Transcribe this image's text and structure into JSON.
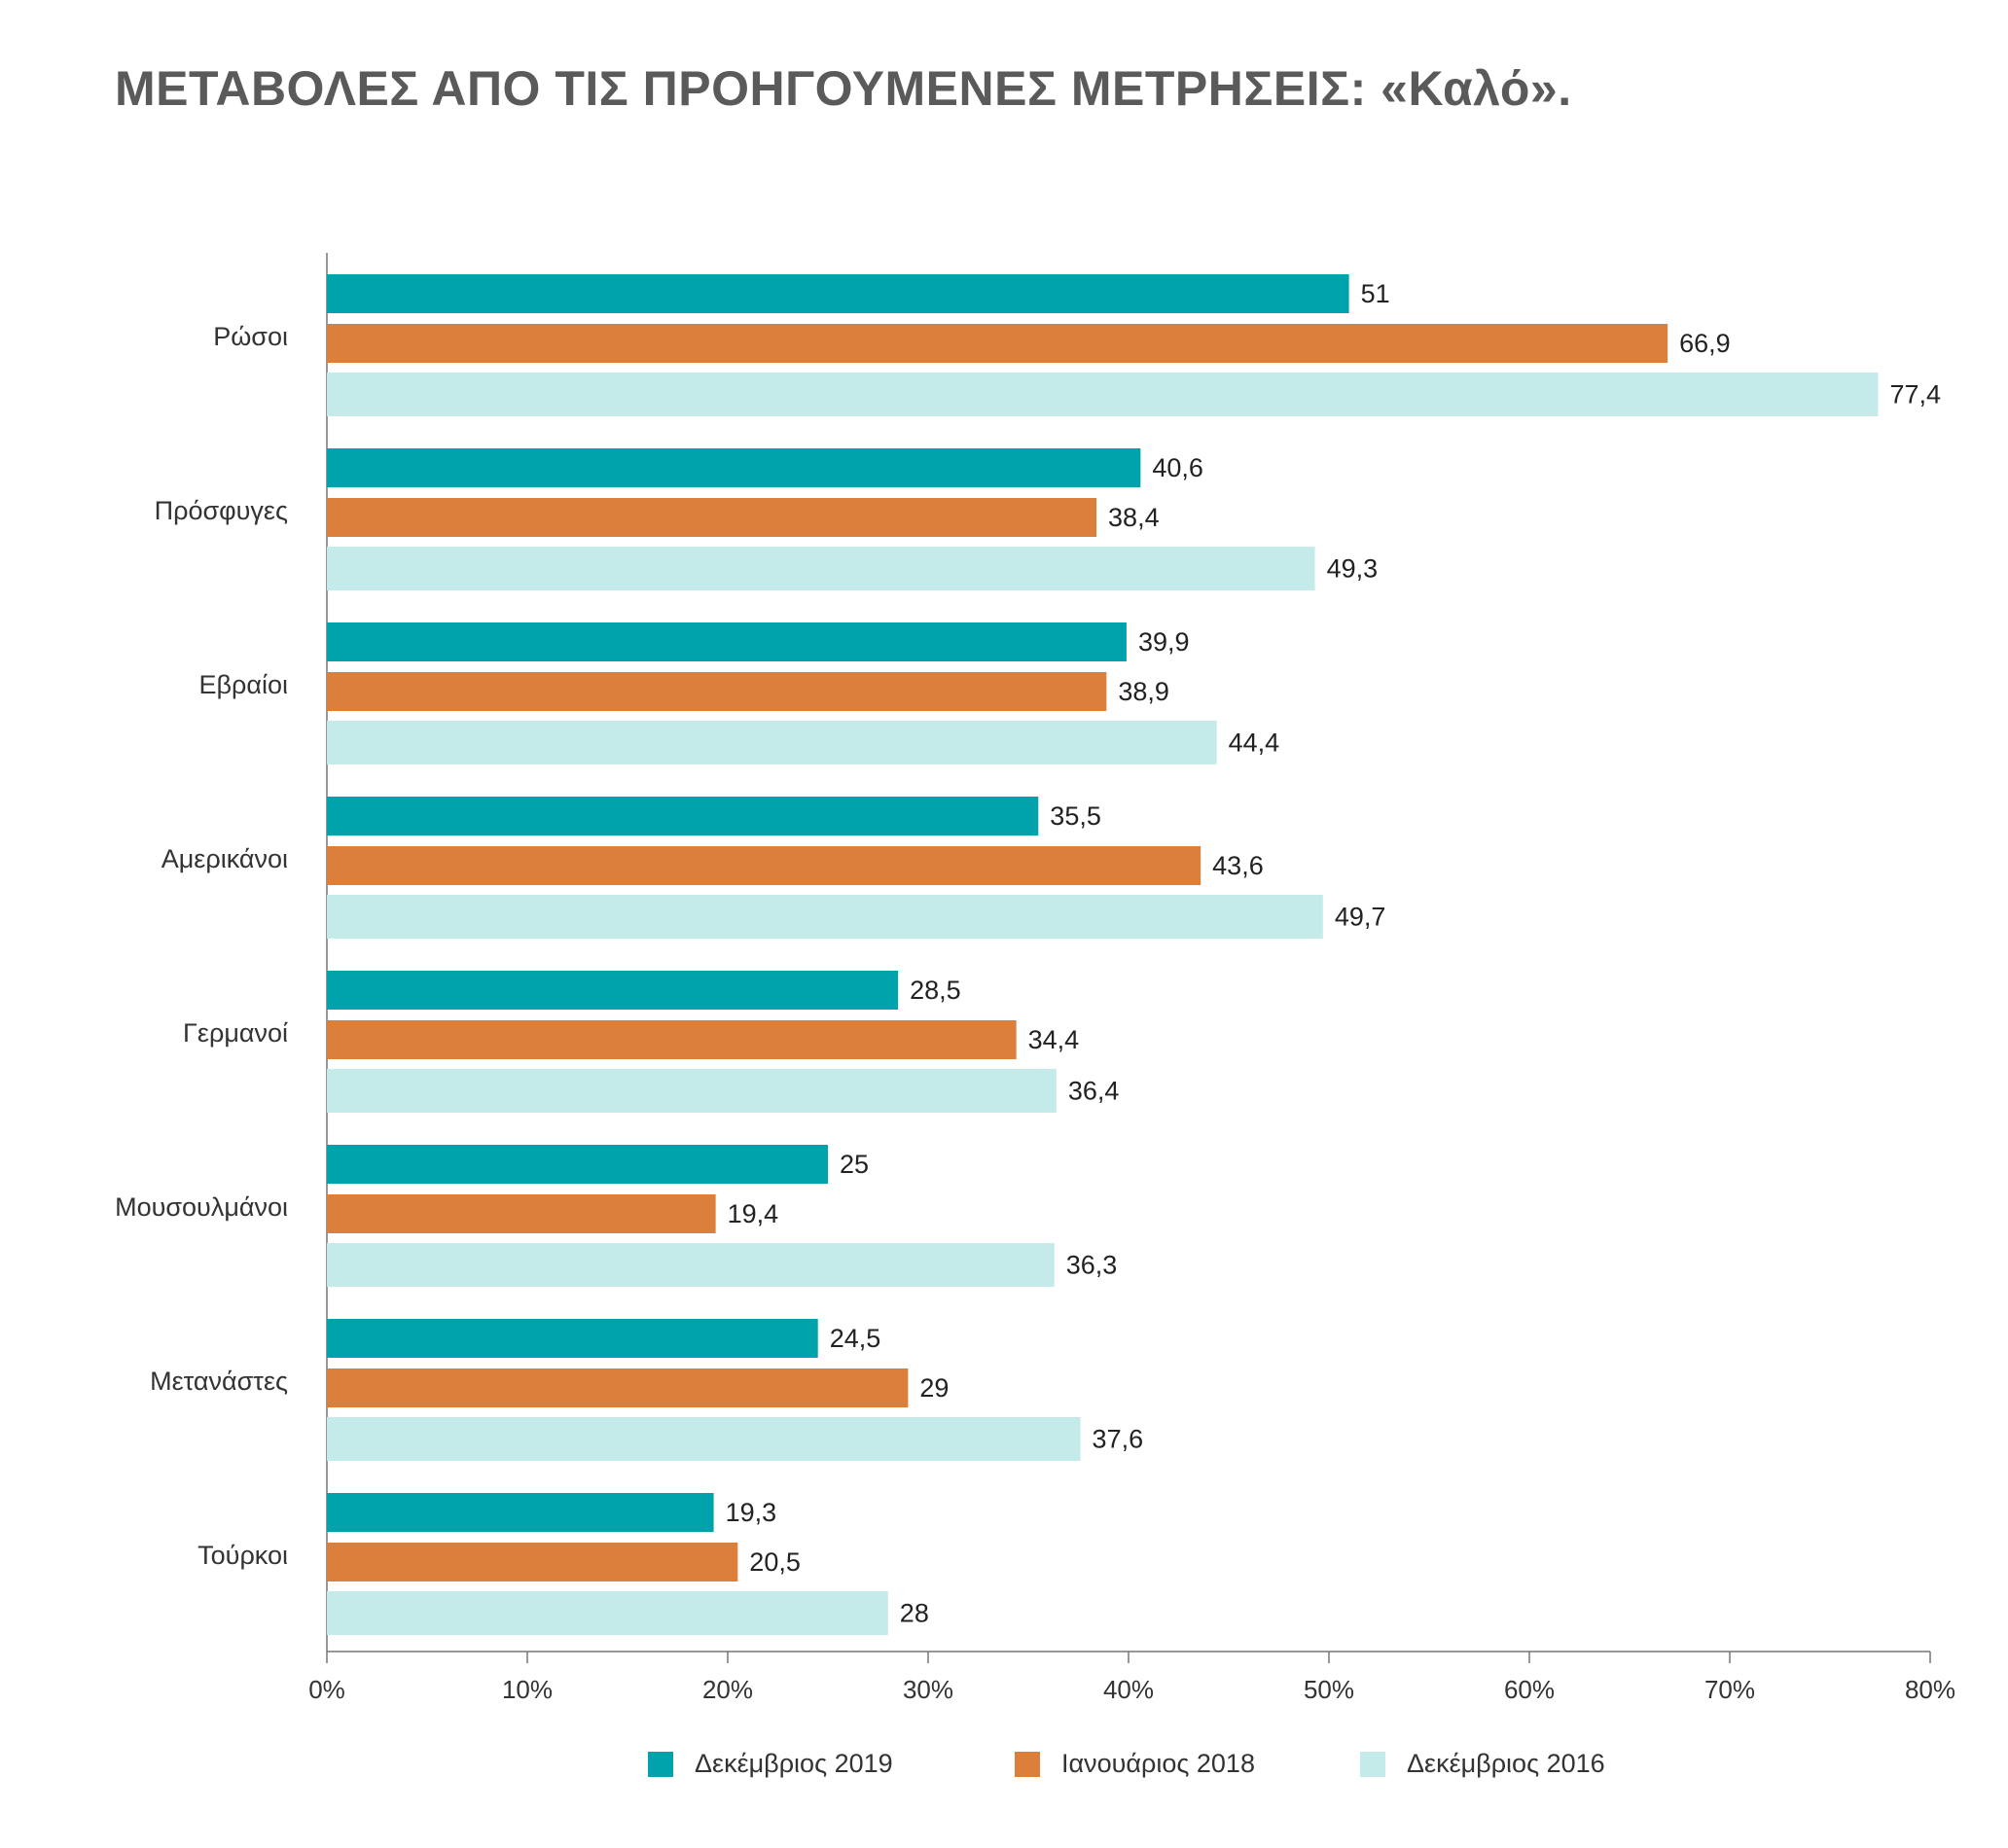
{
  "title": "ΜΕΤΑΒΟΛΕΣ ΑΠΟ ΤΙΣ ΠΡΟΗΓΟΥΜΕΝΕΣ ΜΕΤΡΗΣΕΙΣ: «Καλό».",
  "chart_data": {
    "type": "bar",
    "orientation": "horizontal",
    "title": "ΜΕΤΑΒΟΛΕΣ ΑΠΟ ΤΙΣ ΠΡΟΗΓΟΥΜΕΝΕΣ ΜΕΤΡΗΣΕΙΣ: «Καλό».",
    "categories": [
      "Ρώσοι",
      "Πρόσφυγες",
      "Εβραίοι",
      "Αμερικάνοι",
      "Γερμανοί",
      "Μουσουλμάνοι",
      "Μετανάστες",
      "Τούρκοι"
    ],
    "series": [
      {
        "name": "Δεκέμβριος 2019",
        "color": "#00a2ac",
        "values": [
          51,
          40.6,
          39.9,
          35.5,
          28.5,
          25,
          24.5,
          19.3
        ],
        "labels": [
          "51",
          "40,6",
          "39,9",
          "35,5",
          "28,5",
          "25",
          "24,5",
          "19,3"
        ]
      },
      {
        "name": "Ιανουάριος 2018",
        "color": "#dc7f3b",
        "values": [
          66.9,
          38.4,
          38.9,
          43.6,
          34.4,
          19.4,
          29,
          20.5
        ],
        "labels": [
          "66,9",
          "38,4",
          "38,9",
          "43,6",
          "34,4",
          "19,4",
          "29",
          "20,5"
        ]
      },
      {
        "name": "Δεκέμβριος 2016",
        "color": "#c5eaea",
        "values": [
          77.4,
          49.3,
          44.4,
          49.7,
          36.4,
          36.3,
          37.6,
          28
        ],
        "labels": [
          "77,4",
          "49,3",
          "44,4",
          "49,7",
          "36,4",
          "36,3",
          "37,6",
          "28"
        ]
      }
    ],
    "xlim": [
      0,
      80
    ],
    "x_ticks": [
      "0%",
      "10%",
      "20%",
      "30%",
      "40%",
      "50%",
      "60%",
      "70%",
      "80%"
    ],
    "grid": false,
    "legend_position": "bottom"
  }
}
